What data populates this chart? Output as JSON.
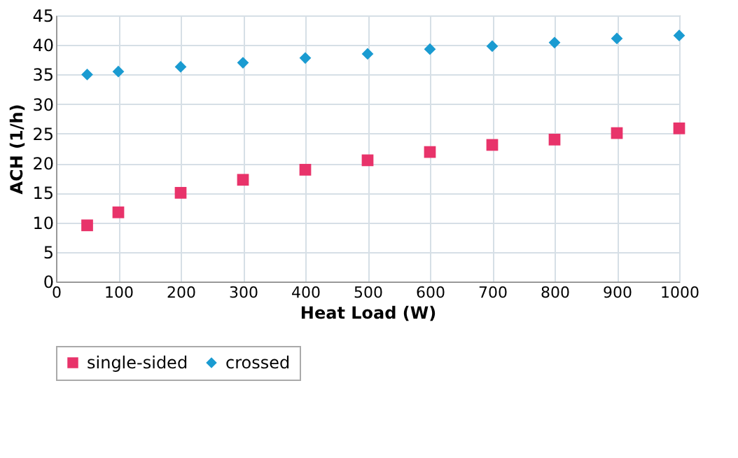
{
  "chart_data": {
    "type": "scatter",
    "xlabel": "Heat Load (W)",
    "ylabel": "ACH (1/h)",
    "x": [
      50,
      100,
      200,
      300,
      400,
      500,
      600,
      700,
      800,
      900,
      1000
    ],
    "series": [
      {
        "name": "single-sided",
        "color": "#e8336a",
        "marker": "square",
        "values": [
          9.5,
          11.7,
          15,
          17.2,
          18.9,
          20.5,
          21.9,
          23.1,
          24,
          25.1,
          25.9
        ]
      },
      {
        "name": "crossed",
        "color": "#1a9bd1",
        "marker": "diamond",
        "values": [
          35,
          35.5,
          36.3,
          37,
          37.8,
          38.5,
          39.3,
          39.8,
          40.4,
          41.1,
          41.6
        ]
      }
    ],
    "xlim": [
      0,
      1000
    ],
    "xticks": [
      0,
      100,
      200,
      300,
      400,
      500,
      600,
      700,
      800,
      900,
      1000
    ],
    "ylim": [
      0,
      45
    ],
    "yticks": [
      0,
      5,
      10,
      15,
      20,
      25,
      30,
      35,
      40,
      45
    ],
    "grid": true,
    "legend": "bottom"
  }
}
